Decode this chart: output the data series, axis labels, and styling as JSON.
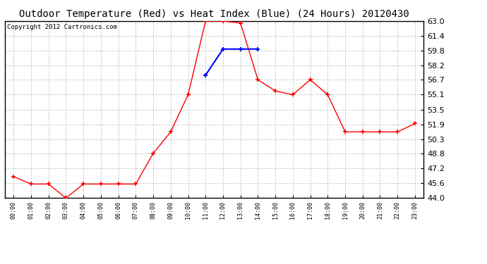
{
  "title": "Outdoor Temperature (Red) vs Heat Index (Blue) (24 Hours) 20120430",
  "copyright_text": "Copyright 2012 Cartronics.com",
  "hours": [
    0,
    1,
    2,
    3,
    4,
    5,
    6,
    7,
    8,
    9,
    10,
    11,
    12,
    13,
    14,
    15,
    16,
    17,
    18,
    19,
    20,
    21,
    22,
    23
  ],
  "temp_red": [
    46.3,
    45.5,
    45.5,
    44.0,
    45.5,
    45.5,
    45.5,
    45.5,
    48.8,
    51.1,
    55.1,
    63.0,
    63.0,
    62.8,
    56.7,
    55.5,
    55.1,
    56.7,
    55.1,
    51.1,
    51.1,
    51.1,
    51.1,
    52.0
  ],
  "heat_blue": [
    null,
    null,
    null,
    null,
    null,
    null,
    null,
    null,
    null,
    null,
    null,
    57.2,
    60.0,
    60.0,
    60.0,
    null,
    null,
    null,
    null,
    null,
    null,
    null,
    null,
    null
  ],
  "ylim": [
    44.0,
    63.0
  ],
  "yticks": [
    44.0,
    45.6,
    47.2,
    48.8,
    50.3,
    51.9,
    53.5,
    55.1,
    56.7,
    58.2,
    59.8,
    61.4,
    63.0
  ],
  "bg_color": "#ffffff",
  "grid_color": "#c8c8c8",
  "red_color": "#ff0000",
  "blue_color": "#0000ff",
  "title_fontsize": 10,
  "copyright_fontsize": 6.5
}
